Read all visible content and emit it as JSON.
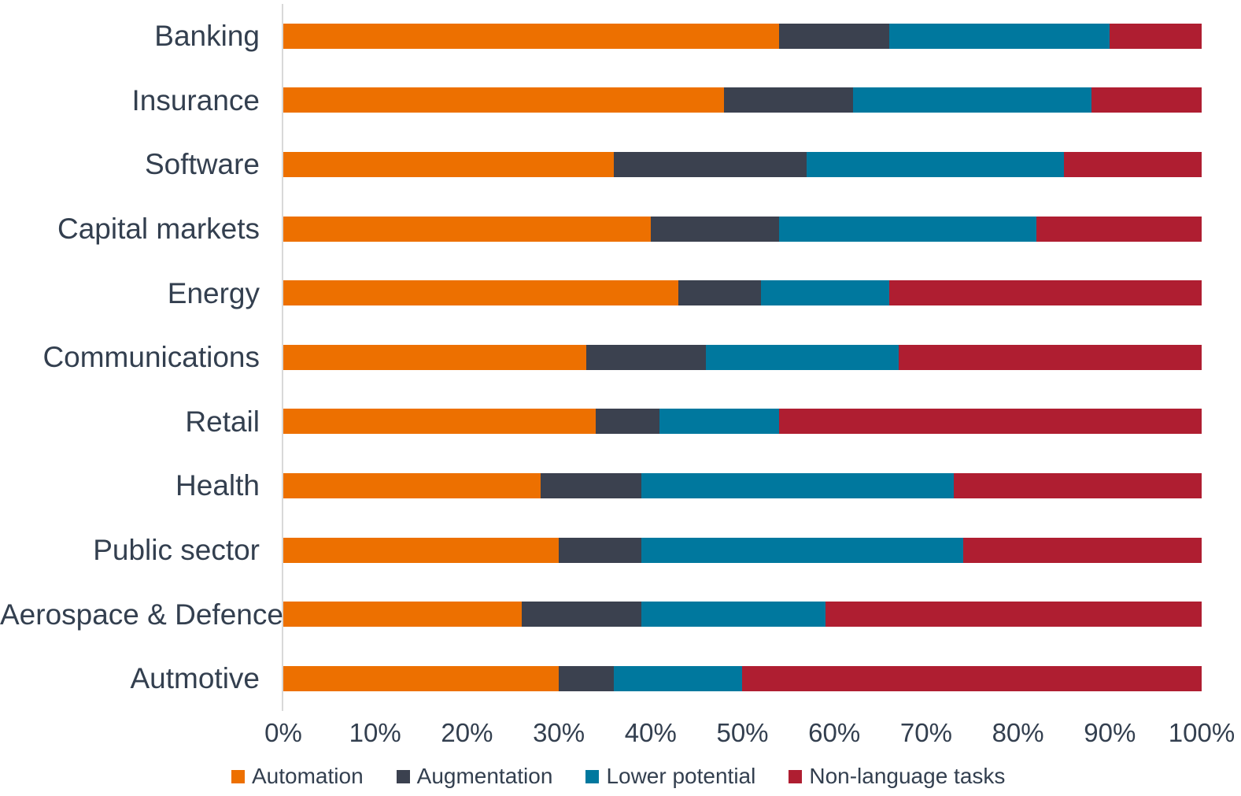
{
  "chart_data": {
    "type": "bar",
    "orientation": "horizontal",
    "stacked": true,
    "unit": "percent",
    "title": "",
    "categories": [
      "Banking",
      "Insurance",
      "Software",
      "Capital markets",
      "Energy",
      "Communications",
      "Retail",
      "Health",
      "Public sector",
      "Aerospace & Defence",
      "Autmotive"
    ],
    "series": [
      {
        "name": "Automation",
        "color": "#ED7000",
        "values": [
          54,
          48,
          36,
          40,
          43,
          33,
          34,
          28,
          30,
          26,
          30
        ]
      },
      {
        "name": "Augmentation",
        "color": "#3B414F",
        "values": [
          12,
          14,
          21,
          14,
          9,
          13,
          7,
          11,
          9,
          13,
          6
        ]
      },
      {
        "name": "Lower potential",
        "color": "#00789E",
        "values": [
          24,
          26,
          28,
          28,
          14,
          21,
          13,
          34,
          35,
          20,
          14
        ]
      },
      {
        "name": "Non-language tasks",
        "color": "#AF1E31",
        "values": [
          10,
          12,
          15,
          18,
          34,
          33,
          46,
          27,
          26,
          41,
          50
        ]
      }
    ],
    "x_axis": {
      "min": 0,
      "max": 100,
      "tick_labels": [
        "0%",
        "10%",
        "20%",
        "30%",
        "40%",
        "50%",
        "60%",
        "70%",
        "80%",
        "90%",
        "100%"
      ]
    },
    "legend": {
      "position": "bottom-left",
      "entries": [
        "Automation",
        "Augmentation",
        "Lower potential",
        "Non-language tasks"
      ]
    },
    "grid": false,
    "axis_line_color": "#D9D9D9",
    "text_color": "#333F4F",
    "background": "#FFFFFF"
  }
}
